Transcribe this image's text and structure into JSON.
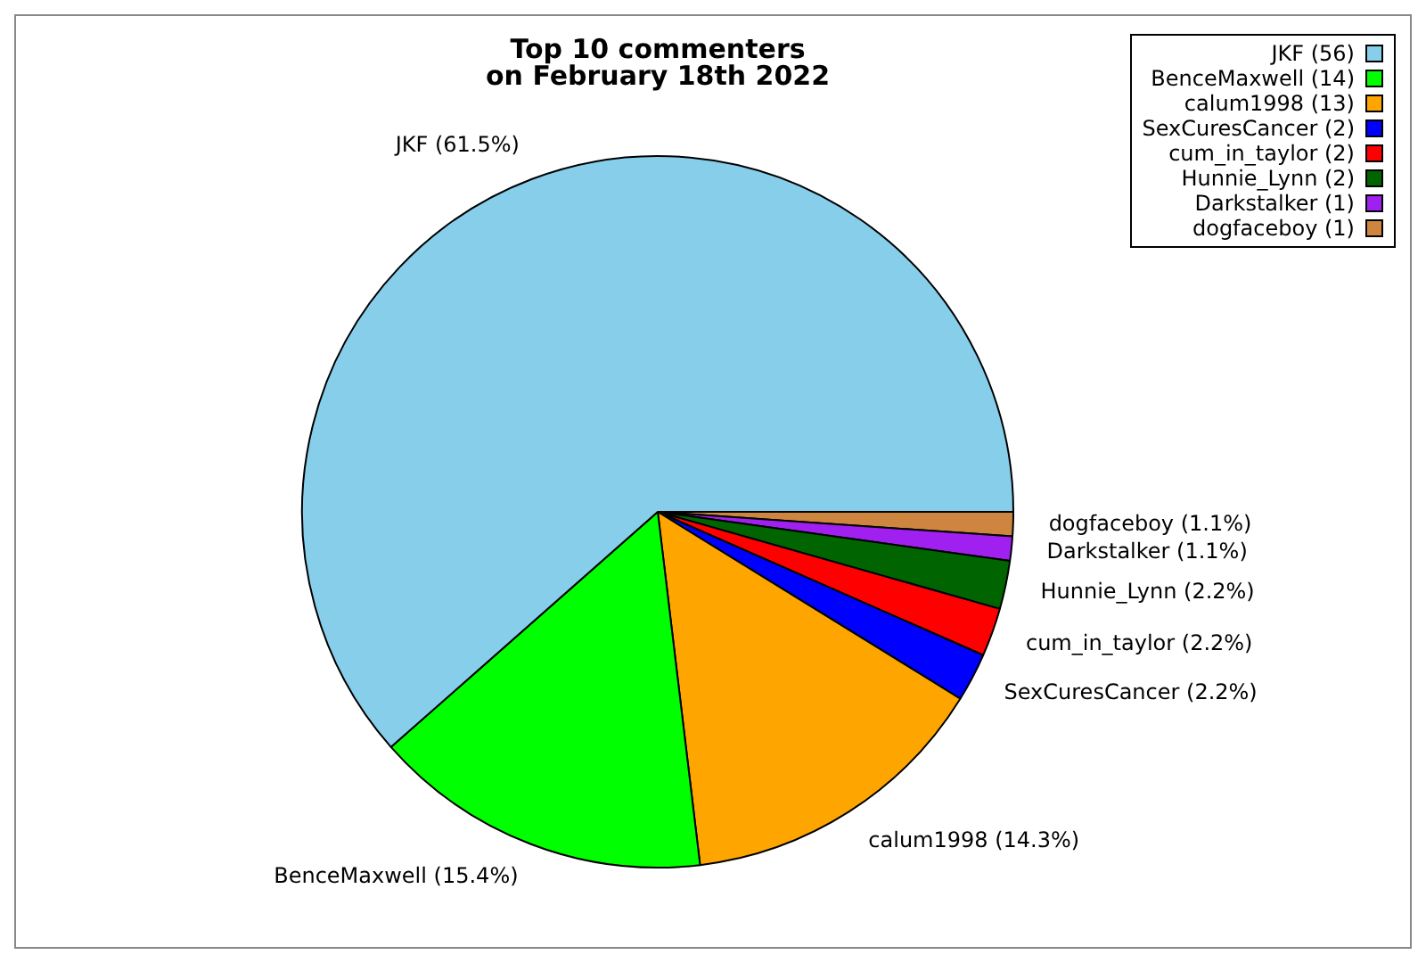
{
  "chart_data": {
    "type": "pie",
    "title": "Top 10 commenters\non February 18th 2022",
    "categories": [
      "JKF (56)",
      "BenceMaxwell (14)",
      "calum1998 (13)",
      "SexCuresCancer (2)",
      "cum_in_taylor (2)",
      "Hunnie_Lynn (2)",
      "Darkstalker (1)",
      "dogfaceboy (1)"
    ],
    "values": [
      61.5,
      15.4,
      14.3,
      2.2,
      2.2,
      2.2,
      1.1,
      1.1
    ],
    "colors": [
      "#87ceeb",
      "#00ff00",
      "#ffa500",
      "#0000ff",
      "#ff0000",
      "#006400",
      "#a020f0",
      "#cd853f"
    ],
    "value_labels": [
      "JKF (61.5%)",
      "BenceMaxwell (15.4%)",
      "calum1998 (14.3%)",
      "SexCuresCancer (2.2%)",
      "cum_in_taylor (2.2%)",
      "Hunnie_Lynn (2.2%)",
      "Darkstalker (1.1%)",
      "dogfaceboy (1.1%)"
    ],
    "legend": "top right"
  }
}
